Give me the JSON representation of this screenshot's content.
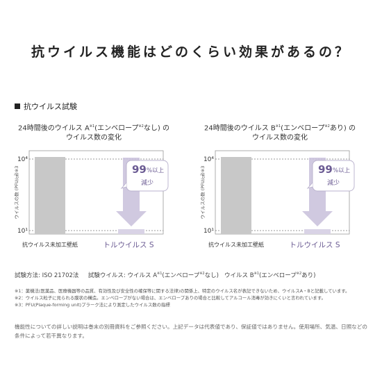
{
  "page": {
    "title": "抗ウイルス機能はどのくらい効果があるの？",
    "section_heading": "抗ウイルス試験"
  },
  "chart_data": [
    {
      "type": "bar",
      "title_line1_pre": "24時間後のウイルス A",
      "title_line1_sup1": "※1",
      "title_line1_paren": "(エンベロープ",
      "title_line1_sup2": "※2",
      "title_line1_post": "なし) の",
      "title_line2": "ウイルス数の変化",
      "ylabel": "ウイルスの数 (PFU/㎠)",
      "ylabel_sup": "※3",
      "y_scale": "log",
      "ylim": [
        10,
        10000
      ],
      "yticks": [
        "10⁴",
        "10¹"
      ],
      "categories": [
        "抗ウイルス未加工壁紙",
        "トルウイルス S"
      ],
      "values": [
        10000,
        10
      ],
      "callout_value": "99",
      "callout_unit": "%以上",
      "callout_text": "減少",
      "colors": {
        "untreated": "#c8c8c8",
        "treated": "#d9d3e6",
        "arrow": "#cbc3dd",
        "callout_text": "#6b5b93"
      }
    },
    {
      "type": "bar",
      "title_line1_pre": "24時間後のウイルス B",
      "title_line1_sup1": "※1",
      "title_line1_paren": "(エンベロープ",
      "title_line1_sup2": "※2",
      "title_line1_post": "あり) の",
      "title_line2": "ウイルス数の変化",
      "ylabel": "ウイルスの数 (PFU/㎠)",
      "ylabel_sup": "※3",
      "y_scale": "log",
      "ylim": [
        10,
        10000
      ],
      "yticks": [
        "10⁴",
        "10¹"
      ],
      "categories": [
        "抗ウイルス未加工壁紙",
        "トルウイルス S"
      ],
      "values": [
        10000,
        10
      ],
      "callout_value": "99",
      "callout_unit": "%以上",
      "callout_text": "減少",
      "colors": {
        "untreated": "#c8c8c8",
        "treated": "#d9d3e6",
        "arrow": "#cbc3dd",
        "callout_text": "#6b5b93"
      }
    }
  ],
  "footer": {
    "method_label": "試験方法: ISO 21702法",
    "virus_label_pre": "試験ウイルス: ウイルス A",
    "virus_sup1": "※1",
    "virus_paren1": "(エンベロープ",
    "virus_sup2": "※2",
    "virus_post1": "なし)",
    "virus_b_pre": "ウイルス B",
    "virus_b_sup1": "※1",
    "virus_b_paren": "(エンベロープ",
    "virus_b_sup2": "※2",
    "virus_b_post": "あり)",
    "notes": [
      "※1：薬機法(医薬品、医療機器等の品質、有効性及び安全性の確保等に関する法律)の関係上、特定のウイルス名が表記できないため、ウイルスA・Bと記載しています。",
      "※2：ウイルス粒子に見られる膜状の構造。エンベロープがない場合は、エンベロープありの場合と比較してアルコール消毒が効きにくいと言われています。",
      "※3：PFU(Plaque-forming unit)プラーク法により測定したウイルス数の指標"
    ],
    "disclaimer": "機能性についての詳しい説明は巻末の別冊資料をご参照ください。上記データは代表値であり、保証値ではありません。使用場所、気温、日照などの条件によって若干異なります。"
  }
}
